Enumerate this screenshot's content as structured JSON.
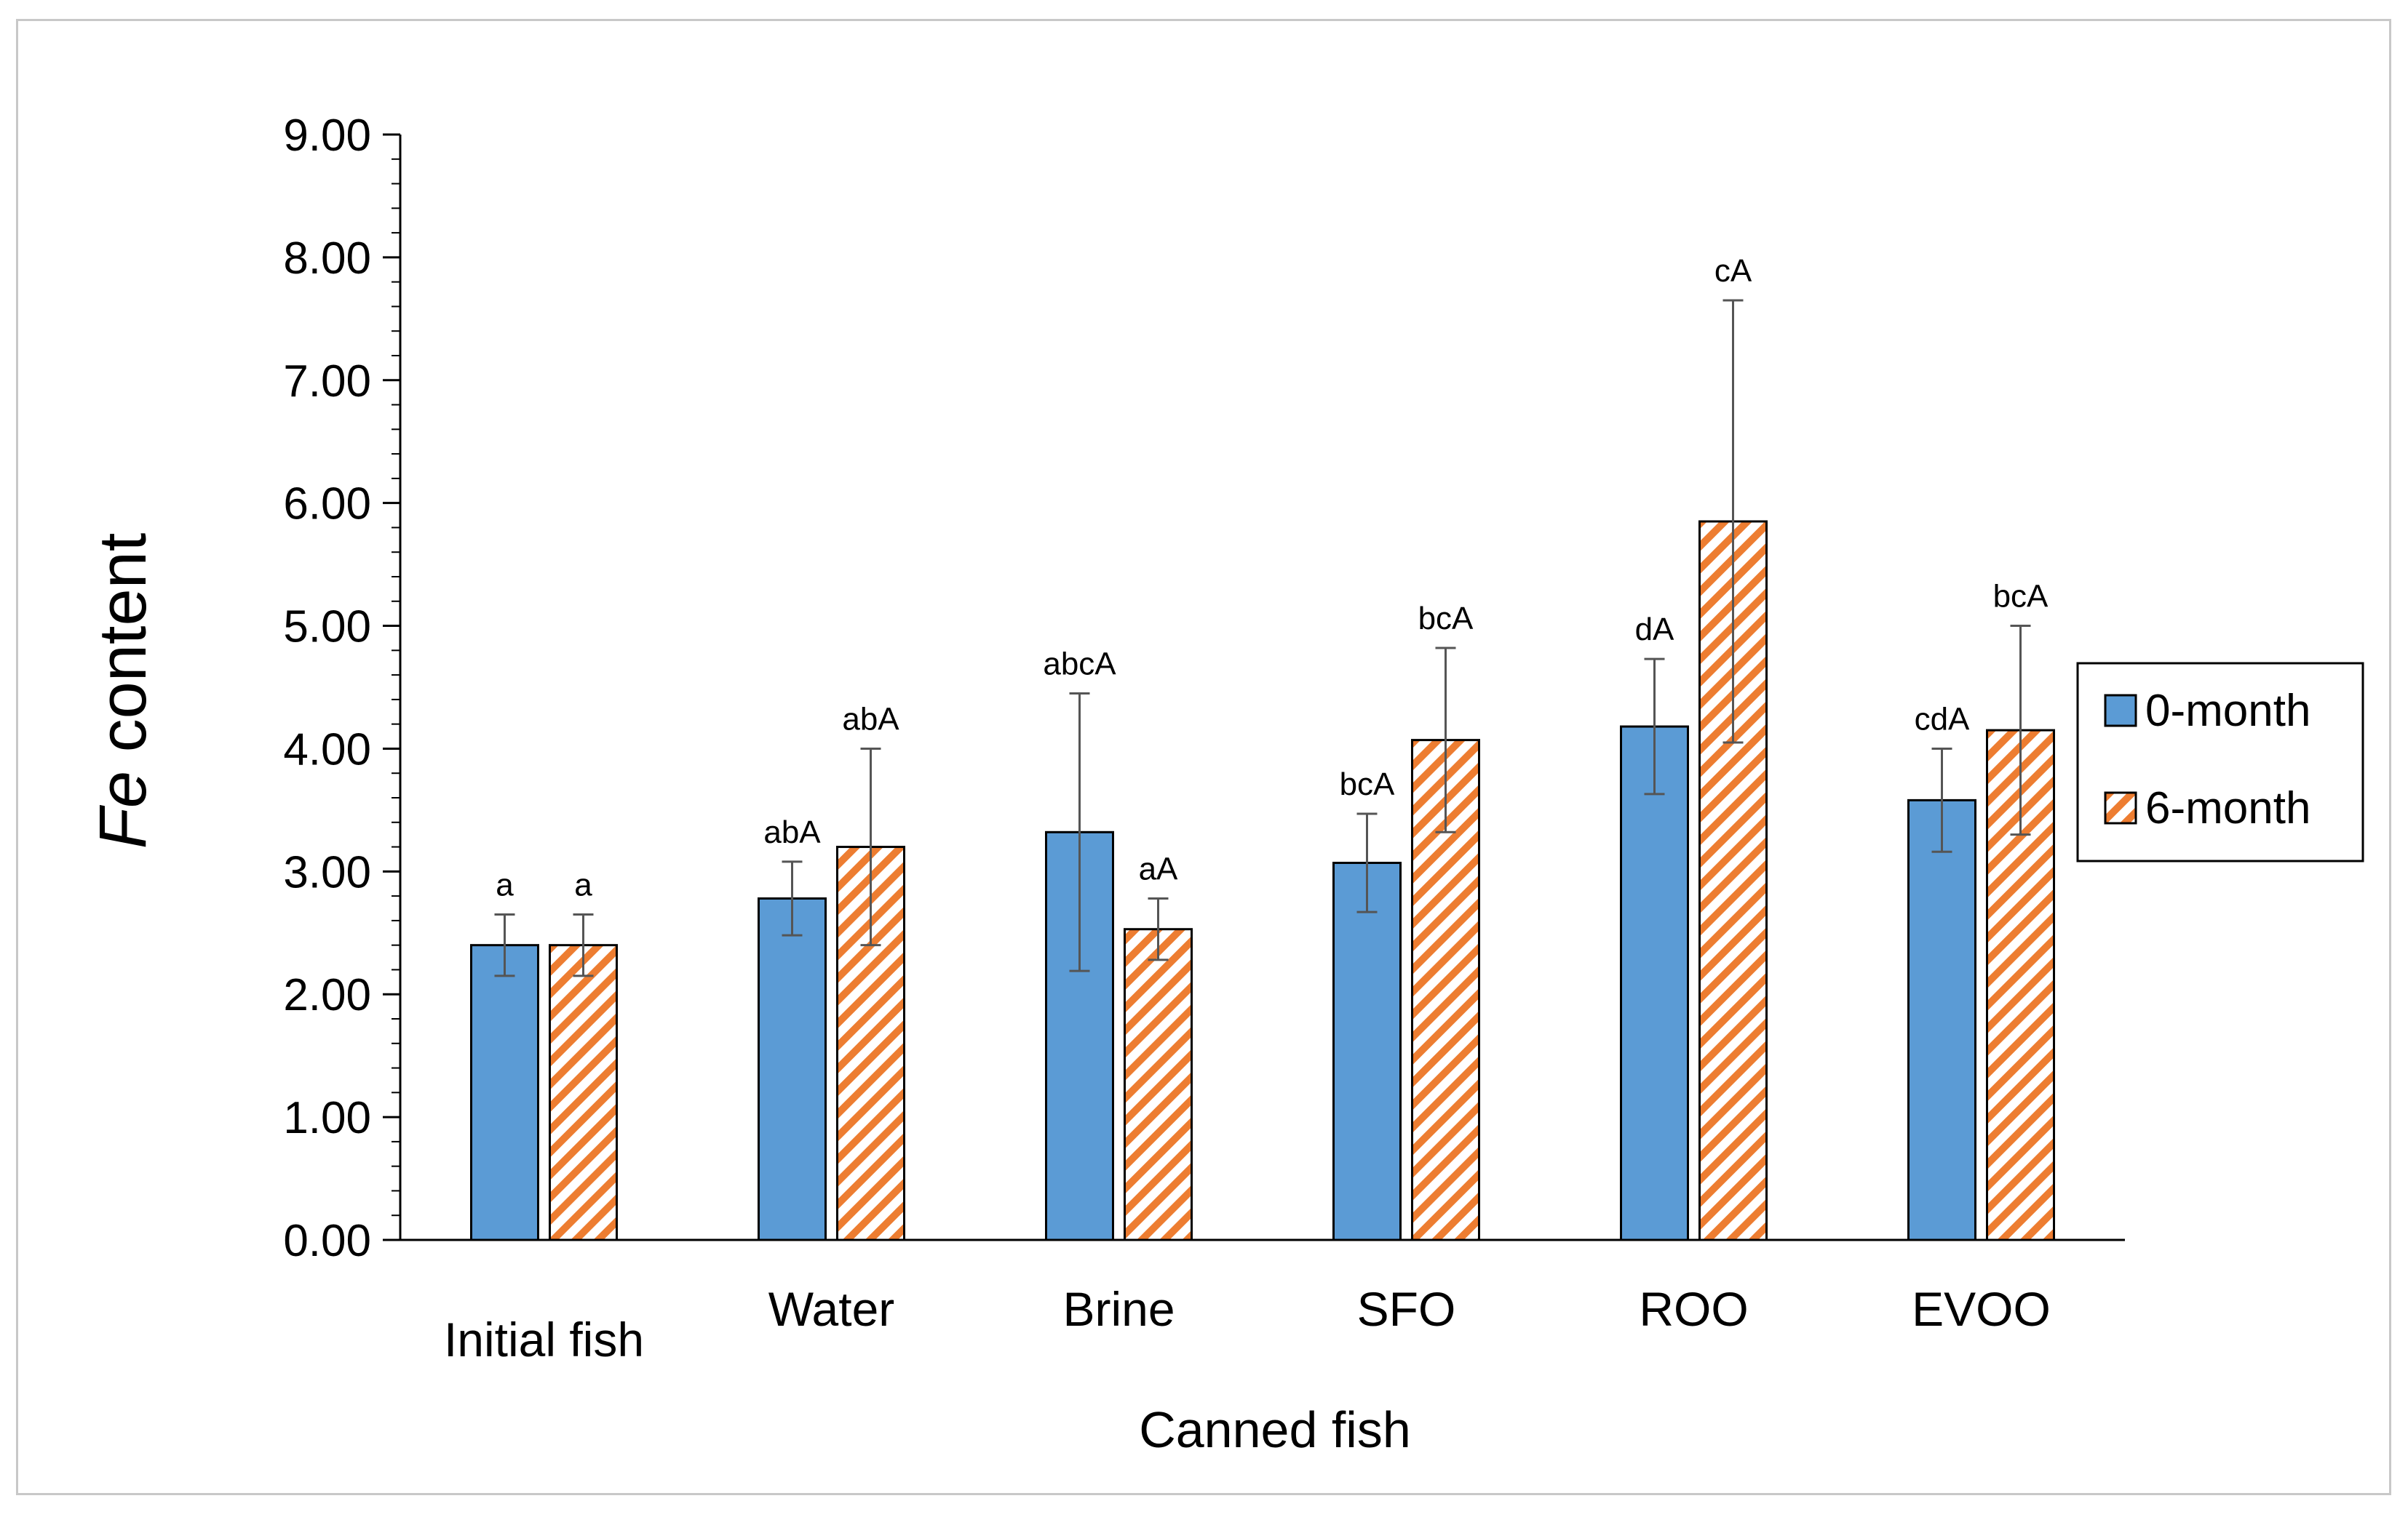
{
  "chart_data": {
    "type": "bar",
    "title": "",
    "xlabel": "Canned fish",
    "ylabel_italic": "Fe",
    "ylabel_rest": " content",
    "ylim": [
      0,
      9
    ],
    "y_major_step": 1,
    "y_minor_step": 0.2,
    "grid": false,
    "legend_position": "right",
    "categories": [
      "Initial fish",
      "Water",
      "Brine",
      "SFO",
      "ROO",
      "EVOO"
    ],
    "y_ticks": [
      "0.00",
      "1.00",
      "2.00",
      "3.00",
      "4.00",
      "5.00",
      "6.00",
      "7.00",
      "8.00",
      "9.00"
    ],
    "series": [
      {
        "name": "0-month",
        "color": "#5b9bd5",
        "pattern": "solid",
        "values": [
          2.4,
          2.78,
          3.32,
          3.07,
          4.18,
          3.58
        ],
        "errors": [
          0.25,
          0.3,
          1.13,
          0.4,
          0.55,
          0.42
        ],
        "labels": [
          "a",
          "abA",
          "abcA",
          "bcA",
          "dA",
          "cdA"
        ]
      },
      {
        "name": "6-month",
        "color": "#ed7d31",
        "pattern": "hatched",
        "values": [
          2.4,
          3.2,
          2.53,
          4.07,
          5.85,
          4.15
        ],
        "errors": [
          0.25,
          0.8,
          0.25,
          0.75,
          1.8,
          0.85
        ],
        "labels": [
          "a",
          "abA",
          "aA",
          "bcA",
          "cA",
          "bcA"
        ]
      }
    ]
  }
}
